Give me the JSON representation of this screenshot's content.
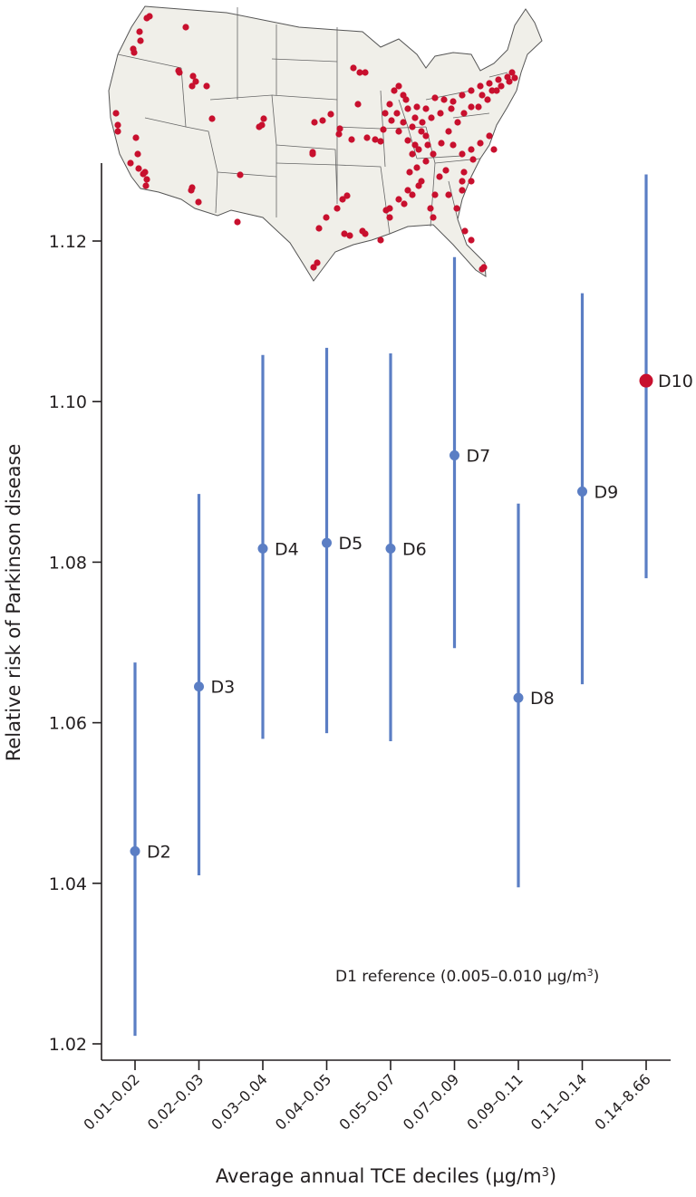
{
  "chart_data": {
    "type": "scatter",
    "subtype": "point-with-error-bars",
    "title": "",
    "xlabel": "Average annual TCE deciles (µg/m³)",
    "ylabel": "Relative risk of Parkinson disease",
    "ylim": [
      1.018,
      1.13
    ],
    "yticks": [
      1.02,
      1.04,
      1.06,
      1.08,
      1.1,
      1.12
    ],
    "ytick_labels": [
      "1.02",
      "1.04",
      "1.06",
      "1.08",
      "1.10",
      "1.12"
    ],
    "grid": false,
    "categories": [
      "0.01–0.02",
      "0.02–0.03",
      "0.03–0.04",
      "0.04–0.05",
      "0.05–0.07",
      "0.07–0.09",
      "0.09–0.11",
      "0.11–0.14",
      "0.14–8.66"
    ],
    "point_labels": [
      "D2",
      "D3",
      "D4",
      "D5",
      "D6",
      "D7",
      "D8",
      "D9",
      "D10"
    ],
    "values": [
      1.044,
      1.0645,
      1.0817,
      1.0824,
      1.0817,
      1.0933,
      1.0631,
      1.0888,
      1.1026
    ],
    "ci_lower": [
      1.021,
      1.041,
      1.058,
      1.0587,
      1.0577,
      1.0693,
      1.0395,
      1.0648,
      1.078
    ],
    "ci_upper": [
      1.0675,
      1.0885,
      1.1058,
      1.1067,
      1.106,
      1.118,
      1.0873,
      1.1135,
      1.1283
    ],
    "highlight_index": 8,
    "colors": {
      "series": "#5b7ec4",
      "highlight": "#c8102e",
      "axis": "#231f20",
      "map_fill": "#f0efe9",
      "map_dots": "#c8102e"
    },
    "annotations": [
      "D1 reference (0.005–0.010 µg/m³)"
    ],
    "inset": "Map of contiguous United States with red dots marking TCE emission sites"
  },
  "annotation": {
    "reference_prefix": "D1 reference (0.005–0.010 µg/m",
    "reference_sup": "3",
    "reference_suffix": ")"
  },
  "axes": {
    "xlabel_prefix": "Average annual TCE deciles (µg/m",
    "xlabel_sup": "3",
    "xlabel_suffix": ")",
    "ylabel": "Relative risk of Parkinson disease"
  }
}
